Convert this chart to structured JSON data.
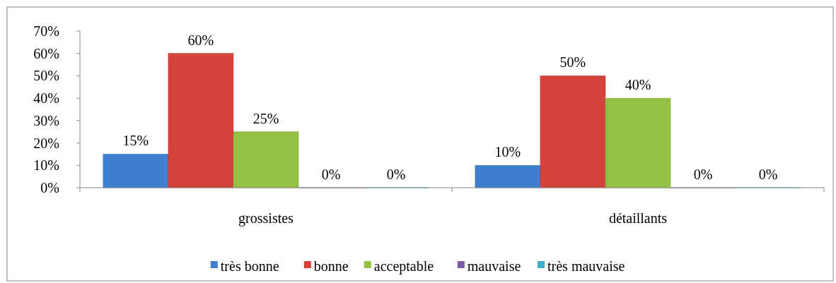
{
  "chart_data": {
    "type": "bar",
    "categories": [
      "grossistes",
      "détaillants"
    ],
    "series": [
      {
        "name": "très bonne",
        "color": "#3f7fcf",
        "values": [
          15,
          10
        ],
        "value_labels": [
          "15%",
          "10%"
        ]
      },
      {
        "name": "bonne",
        "color": "#d5413b",
        "values": [
          60,
          50
        ],
        "value_labels": [
          "60%",
          "50%"
        ]
      },
      {
        "name": "acceptable",
        "color": "#94c044",
        "values": [
          25,
          40
        ],
        "value_labels": [
          "25%",
          "40%"
        ]
      },
      {
        "name": "mauvaise",
        "color": "#7b5ba6",
        "values": [
          0,
          0
        ],
        "value_labels": [
          "0%",
          "0%"
        ]
      },
      {
        "name": "très mauvaise",
        "color": "#3fb0cc",
        "values": [
          0,
          0
        ],
        "value_labels": [
          "0%",
          "0%"
        ]
      }
    ],
    "ylim": [
      0,
      70
    ],
    "yticks": [
      {
        "value": 0,
        "label": "0%"
      },
      {
        "value": 10,
        "label": "10%"
      },
      {
        "value": 20,
        "label": "20%"
      },
      {
        "value": 30,
        "label": "30%"
      },
      {
        "value": 40,
        "label": "40%"
      },
      {
        "value": 50,
        "label": "50%"
      },
      {
        "value": 60,
        "label": "60%"
      },
      {
        "value": 70,
        "label": "70%"
      }
    ],
    "grid": false,
    "legend": "bottom"
  }
}
